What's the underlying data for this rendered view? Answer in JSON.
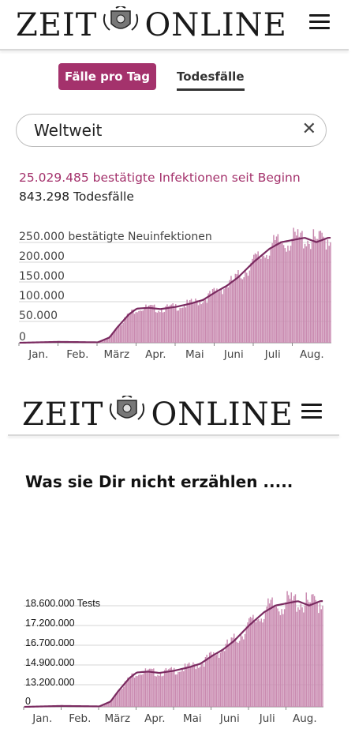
{
  "header": {
    "logo_left": "ZEIT",
    "logo_right": "ONLINE"
  },
  "tabs": {
    "active_label": "Fälle pro Tag",
    "inactive_label": "Todesfälle"
  },
  "search": {
    "value": "Weltweit",
    "clear_icon": "close-icon"
  },
  "stats": {
    "infections": "25.029.485 bestätigte Infektionen seit Beginn",
    "deaths": "843.298 Todesfälle"
  },
  "headline": "Was sie Dir nicht erzählen .....",
  "colors": {
    "accent": "#a4326c",
    "bar": "#c98ab0",
    "line": "#7a2a60"
  },
  "months": [
    "Jan.",
    "Feb.",
    "März",
    "Apr.",
    "Mai",
    "Juni",
    "Juli",
    "Aug."
  ],
  "chart_data": [
    {
      "type": "bar",
      "title": "",
      "y_ticks": [
        "250.000 bestätigte Neuinfektionen",
        "200.000",
        "150.000",
        "100.000",
        "50.000",
        "0"
      ],
      "y_tick_values": [
        250000,
        200000,
        150000,
        100000,
        50000,
        0
      ],
      "ylim": [
        0,
        260000
      ],
      "x_ticks": [
        "Jan.",
        "Feb.",
        "März",
        "Apr.",
        "Mai",
        "Juni",
        "Juli",
        "Aug."
      ],
      "grid": true,
      "series": [
        {
          "kind": "bar"
        },
        {
          "kind": "line"
        }
      ],
      "monthly_points": [
        [
          0,
          0
        ],
        [
          0.5,
          1000
        ],
        [
          1,
          2000
        ],
        [
          1.5,
          1500
        ],
        [
          2,
          1000
        ],
        [
          2.3,
          12000
        ],
        [
          2.5,
          35000
        ],
        [
          2.8,
          65000
        ],
        [
          3,
          78000
        ],
        [
          3.3,
          80000
        ],
        [
          3.6,
          77000
        ],
        [
          4,
          82000
        ],
        [
          4.4,
          90000
        ],
        [
          4.7,
          98000
        ],
        [
          5,
          115000
        ],
        [
          5.3,
          130000
        ],
        [
          5.6,
          150000
        ],
        [
          6,
          185000
        ],
        [
          6.4,
          215000
        ],
        [
          6.7,
          230000
        ],
        [
          7,
          235000
        ],
        [
          7.3,
          240000
        ],
        [
          7.6,
          230000
        ],
        [
          7.9,
          240000
        ]
      ]
    },
    {
      "type": "bar",
      "title": "",
      "y_ticks": [
        "18.600.000 Tests",
        "17.200.000",
        "16.700.000",
        "14.900.000",
        "13.200.000",
        "0"
      ],
      "x_ticks": [
        "Jan.",
        "Feb.",
        "März",
        "Apr.",
        "Mai",
        "Juni",
        "Juli",
        "Aug."
      ],
      "grid": true
    }
  ]
}
